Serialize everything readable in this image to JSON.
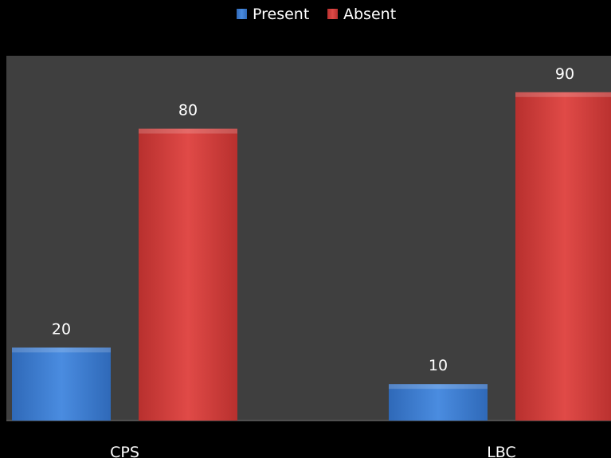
{
  "chart_data": {
    "type": "bar",
    "categories": [
      "CPS",
      "LBC"
    ],
    "series": [
      {
        "name": "Present",
        "values": [
          20,
          10
        ],
        "color": "#3f7fd6"
      },
      {
        "name": "Absent",
        "values": [
          80,
          90
        ],
        "color": "#d8413f"
      }
    ],
    "ylim": [
      0,
      100
    ],
    "legend_position": "top-center",
    "grid": false,
    "plot_background": "#3f3f3f",
    "page_background": "#000000",
    "text_color": "#ffffff"
  }
}
